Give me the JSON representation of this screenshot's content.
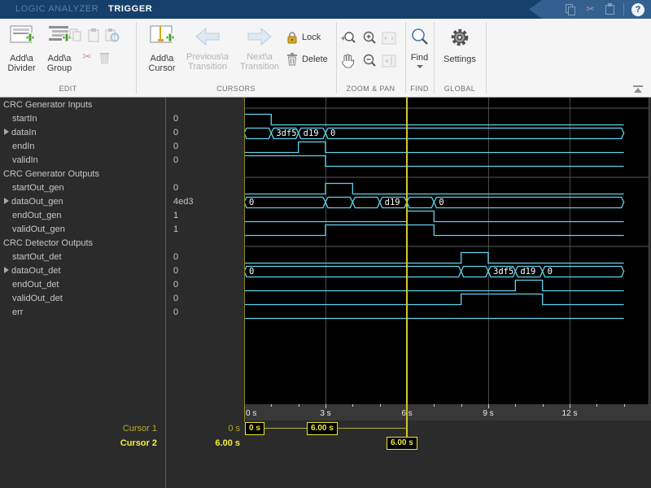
{
  "tab_bar": {
    "app_tab": "LOGIC ANALYZER",
    "active_tab": "TRIGGER",
    "help": "?"
  },
  "toolbar": {
    "sections": [
      "EDIT",
      "CURSORS",
      "ZOOM & PAN",
      "FIND",
      "GLOBAL"
    ],
    "buttons": {
      "add_divider": [
        "Add\\a",
        "Divider"
      ],
      "add_group": [
        "Add\\a",
        "Group"
      ],
      "add_cursor": [
        "Add\\a",
        "Cursor"
      ],
      "prev_transition": [
        "Previous\\a",
        "Transition"
      ],
      "next_transition": [
        "Next\\a",
        "Transition"
      ],
      "lock": "Lock",
      "delete": "Delete",
      "find": "Find",
      "settings": "Settings"
    }
  },
  "waveform": {
    "t_end": 14,
    "signals": [
      {
        "kind": "group",
        "name": "CRC Generator Inputs",
        "value": ""
      },
      {
        "kind": "digital",
        "name": "startIn",
        "value": "0",
        "wave": [
          [
            0,
            1
          ],
          [
            1,
            0
          ]
        ]
      },
      {
        "kind": "bus",
        "name": "dataIn",
        "value": "0",
        "segments": [
          [
            0,
            1,
            ""
          ],
          [
            1,
            2,
            "3df5"
          ],
          [
            2,
            3,
            "d19"
          ],
          [
            3,
            14,
            "0"
          ]
        ]
      },
      {
        "kind": "digital",
        "name": "endIn",
        "value": "0",
        "wave": [
          [
            0,
            0
          ],
          [
            2,
            1
          ],
          [
            3,
            0
          ]
        ]
      },
      {
        "kind": "digital",
        "name": "validIn",
        "value": "0",
        "wave": [
          [
            0,
            1
          ],
          [
            3,
            0
          ]
        ]
      },
      {
        "kind": "group",
        "name": "CRC Generator Outputs",
        "value": ""
      },
      {
        "kind": "digital",
        "name": "startOut_gen",
        "value": "0",
        "wave": [
          [
            0,
            0
          ],
          [
            3,
            1
          ],
          [
            4,
            0
          ]
        ]
      },
      {
        "kind": "bus",
        "name": "dataOut_gen",
        "value": "4ed3",
        "segments": [
          [
            0,
            3,
            "0"
          ],
          [
            3,
            4,
            ""
          ],
          [
            4,
            5,
            ""
          ],
          [
            5,
            6,
            "d19"
          ],
          [
            6,
            7,
            ""
          ],
          [
            7,
            14,
            "0"
          ]
        ]
      },
      {
        "kind": "digital",
        "name": "endOut_gen",
        "value": "1",
        "wave": [
          [
            0,
            0
          ],
          [
            6,
            1
          ],
          [
            7,
            0
          ]
        ]
      },
      {
        "kind": "digital",
        "name": "validOut_gen",
        "value": "1",
        "wave": [
          [
            0,
            0
          ],
          [
            3,
            1
          ],
          [
            7,
            0
          ]
        ]
      },
      {
        "kind": "group",
        "name": "CRC Detector Outputs",
        "value": ""
      },
      {
        "kind": "digital",
        "name": "startOut_det",
        "value": "0",
        "wave": [
          [
            0,
            0
          ],
          [
            8,
            1
          ],
          [
            9,
            0
          ]
        ]
      },
      {
        "kind": "bus",
        "name": "dataOut_det",
        "value": "0",
        "segments": [
          [
            0,
            8,
            "0"
          ],
          [
            8,
            9,
            ""
          ],
          [
            9,
            10,
            "3df5"
          ],
          [
            10,
            11,
            "d19"
          ],
          [
            11,
            14,
            "0"
          ]
        ]
      },
      {
        "kind": "digital",
        "name": "endOut_det",
        "value": "0",
        "wave": [
          [
            0,
            0
          ],
          [
            10,
            1
          ],
          [
            11,
            0
          ]
        ]
      },
      {
        "kind": "digital",
        "name": "validOut_det",
        "value": "0",
        "wave": [
          [
            0,
            0
          ],
          [
            8,
            1
          ],
          [
            11,
            0
          ]
        ]
      },
      {
        "kind": "digital",
        "name": "err",
        "value": "0",
        "wave": [
          [
            0,
            0
          ]
        ]
      }
    ]
  },
  "axis": {
    "majors": [
      {
        "t": 0,
        "label": "0 s"
      },
      {
        "t": 3,
        "label": "3 s"
      },
      {
        "t": 6,
        "label": "6 s"
      },
      {
        "t": 9,
        "label": "9 s"
      },
      {
        "t": 12,
        "label": "12 s"
      }
    ],
    "minor_step": 1
  },
  "cursors": {
    "cursor1": {
      "label": "Cursor 1",
      "value": "0 s",
      "time": 0,
      "marker": "0 s",
      "delta": "6.00 s"
    },
    "cursor2": {
      "label": "Cursor 2",
      "value": "6.00 s",
      "time": 6,
      "marker": "6.00 s"
    }
  },
  "colors": {
    "wave": "#5fd4ec",
    "cursor1": "#8d8420",
    "cursor2": "#d3c82e",
    "cursor_text": "#f0e93f",
    "header_blue": "#15406b",
    "accent_green": "#44a02c"
  }
}
